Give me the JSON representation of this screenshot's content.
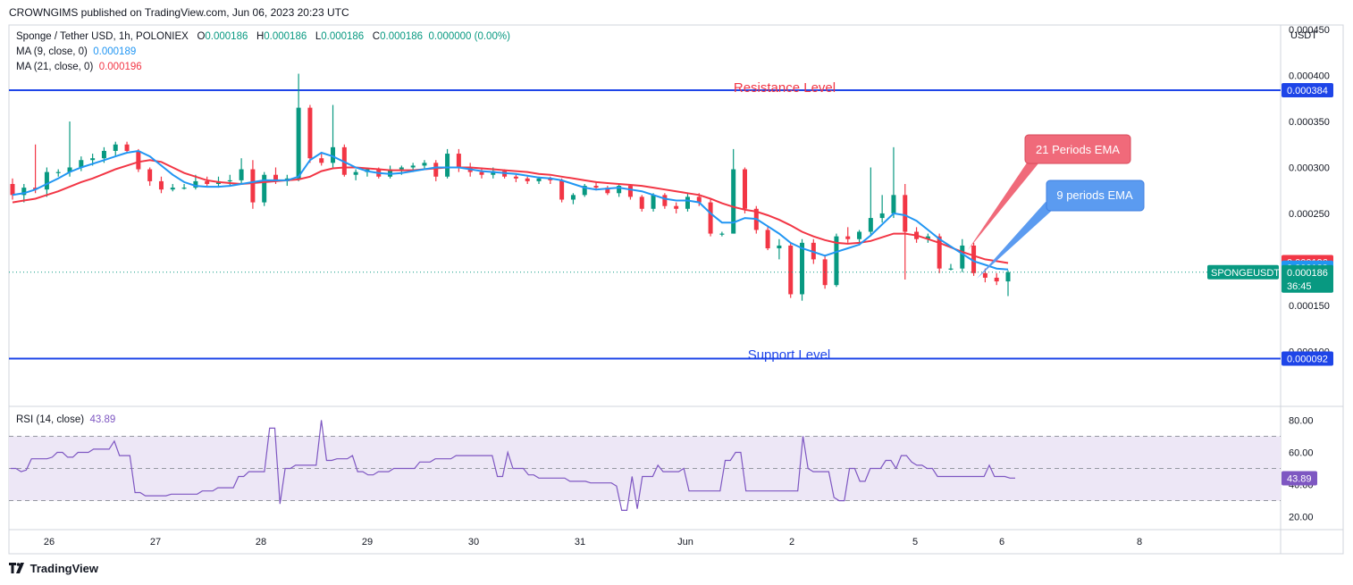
{
  "publisher": "CROWNGIMS published on TradingView.com, Jun 06, 2023 20:23 UTC",
  "legend": {
    "symbol": "Sponge / Tether USD, 1h, POLONIEX",
    "o_label": "O",
    "o": "0.000186",
    "h_label": "H",
    "h": "0.000186",
    "l_label": "L",
    "l": "0.000186",
    "c_label": "C",
    "c": "0.000186",
    "change": "0.000000 (0.00%)",
    "ma9_label": "MA (9, close, 0)",
    "ma9_value": "0.000189",
    "ma21_label": "MA (21, close, 0)",
    "ma21_value": "0.000196",
    "rsi_label": "RSI (14, close)",
    "rsi_value": "43.89"
  },
  "currency": "USDT",
  "annotations": {
    "resistance": "Resistance Level",
    "support": "Support Level",
    "ema21": "21 Periods EMA",
    "ema9": "9 periods EMA"
  },
  "price_tags": {
    "resistance": "0.000384",
    "ma21": "0.000196",
    "ma9": "0.000189",
    "symbol": "SPONGEUSDT",
    "last": "0.000186",
    "countdown": "36:45",
    "support": "0.000092",
    "rsi": "43.89"
  },
  "footer_logo": "TradingView",
  "colors": {
    "up": "#089981",
    "down": "#f23645",
    "ma9": "#2196f3",
    "ma21": "#f23645",
    "level": "#1e45e8",
    "rsi": "#7e57c2",
    "rsi_band": "#ede7f6",
    "ema21_box": "#f06a7a",
    "ema9_box": "#5b9bf0"
  },
  "chart_data": [
    {
      "type": "candlestick",
      "title": "Sponge / Tether USD, 1h, POLONIEX",
      "ylabel": "USDT",
      "x_ticks": [
        "26",
        "27",
        "28",
        "29",
        "30",
        "31",
        "Jun",
        "2",
        "5",
        "6",
        "8"
      ],
      "y_ticks": [
        "0.000450",
        "0.000400",
        "0.000350",
        "0.000300",
        "0.000250",
        "0.000150",
        "0.000100"
      ],
      "ylim": [
        4e-05,
        0.000455
      ],
      "levels": [
        {
          "name": "Resistance Level",
          "value": 0.000384
        },
        {
          "name": "Support Level",
          "value": 9.2e-05
        }
      ],
      "series": [
        {
          "name": "MA (9, close, 0)",
          "last": 0.000189
        },
        {
          "name": "MA (21, close, 0)",
          "last": 0.000196
        }
      ],
      "last_price": 0.000186,
      "candles": [
        [
          0.000282,
          0.000288,
          0.000265,
          0.00027
        ],
        [
          0.00027,
          0.000282,
          0.000262,
          0.000278
        ],
        [
          0.000278,
          0.000325,
          0.000272,
          0.000276
        ],
        [
          0.000276,
          0.0003,
          0.000268,
          0.000295
        ],
        [
          0.000295,
          0.000298,
          0.00029,
          0.000295
        ],
        [
          0.000295,
          0.00035,
          0.00029,
          0.0003
        ],
        [
          0.0003,
          0.000312,
          0.000296,
          0.000308
        ],
        [
          0.000308,
          0.000315,
          0.000302,
          0.00031
        ],
        [
          0.00031,
          0.000322,
          0.000305,
          0.000318
        ],
        [
          0.000318,
          0.000328,
          0.000312,
          0.000325
        ],
        [
          0.000325,
          0.000328,
          0.000315,
          0.000318
        ],
        [
          0.000318,
          0.00032,
          0.000295,
          0.000298
        ],
        [
          0.000298,
          0.0003,
          0.00028,
          0.000285
        ],
        [
          0.000285,
          0.00029,
          0.000272,
          0.000276
        ],
        [
          0.000276,
          0.000282,
          0.000274,
          0.000278
        ],
        [
          0.000278,
          0.000282,
          0.000276,
          0.000278
        ],
        [
          0.000278,
          0.000292,
          0.000276,
          0.000285
        ],
        [
          0.000285,
          0.00029,
          0.00028,
          0.000282
        ],
        [
          0.000282,
          0.00029,
          0.000278,
          0.000285
        ],
        [
          0.000285,
          0.000292,
          0.00028,
          0.000286
        ],
        [
          0.000286,
          0.00031,
          0.000282,
          0.000298
        ],
        [
          0.000298,
          0.000308,
          0.000255,
          0.000262
        ],
        [
          0.000262,
          0.000295,
          0.000258,
          0.000292
        ],
        [
          0.000292,
          0.0003,
          0.000282,
          0.000285
        ],
        [
          0.000285,
          0.000292,
          0.00028,
          0.000288
        ],
        [
          0.000288,
          0.000402,
          0.000285,
          0.000365
        ],
        [
          0.000365,
          0.000368,
          0.000305,
          0.00031
        ],
        [
          0.00031,
          0.000315,
          0.000302,
          0.000305
        ],
        [
          0.000305,
          0.000368,
          0.0003,
          0.000322
        ],
        [
          0.000322,
          0.000325,
          0.00029,
          0.000292
        ],
        [
          0.000292,
          0.000298,
          0.000286,
          0.000295
        ],
        [
          0.000295,
          0.0003,
          0.00029,
          0.000298
        ],
        [
          0.000298,
          0.0003,
          0.000288,
          0.00029
        ],
        [
          0.00029,
          0.000302,
          0.000288,
          0.000298
        ],
        [
          0.000298,
          0.000302,
          0.000292,
          0.0003
        ],
        [
          0.0003,
          0.000305,
          0.000295,
          0.000302
        ],
        [
          0.000302,
          0.000308,
          0.000298,
          0.000305
        ],
        [
          0.000305,
          0.000308,
          0.000285,
          0.00029
        ],
        [
          0.00029,
          0.00032,
          0.000288,
          0.000315
        ],
        [
          0.000315,
          0.00032,
          0.000295,
          0.0003
        ],
        [
          0.0003,
          0.000305,
          0.00029,
          0.000295
        ],
        [
          0.000295,
          0.0003,
          0.000288,
          0.000292
        ],
        [
          0.000292,
          0.0003,
          0.000288,
          0.000296
        ],
        [
          0.000296,
          0.000298,
          0.000288,
          0.00029
        ],
        [
          0.00029,
          0.000292,
          0.000284,
          0.000288
        ],
        [
          0.000288,
          0.00029,
          0.000282,
          0.000285
        ],
        [
          0.000285,
          0.00029,
          0.000282,
          0.000288
        ],
        [
          0.000288,
          0.00029,
          0.000282,
          0.000286
        ],
        [
          0.000286,
          0.000288,
          0.000262,
          0.000265
        ],
        [
          0.000265,
          0.000272,
          0.00026,
          0.00027
        ],
        [
          0.00027,
          0.000282,
          0.000268,
          0.00028
        ],
        [
          0.00028,
          0.000285,
          0.000275,
          0.000278
        ],
        [
          0.000278,
          0.00028,
          0.00027,
          0.000272
        ],
        [
          0.000272,
          0.000282,
          0.000268,
          0.00028
        ],
        [
          0.00028,
          0.000282,
          0.000265,
          0.000268
        ],
        [
          0.000268,
          0.00027,
          0.000252,
          0.000255
        ],
        [
          0.000255,
          0.000272,
          0.000252,
          0.00027
        ],
        [
          0.00027,
          0.000272,
          0.000255,
          0.000258
        ],
        [
          0.000258,
          0.000262,
          0.00025,
          0.000255
        ],
        [
          0.000255,
          0.000272,
          0.000252,
          0.000268
        ],
        [
          0.000268,
          0.000272,
          0.000258,
          0.000262
        ],
        [
          0.000262,
          0.000265,
          0.000225,
          0.000228
        ],
        [
          0.000228,
          0.00023,
          0.000225,
          0.000228
        ],
        [
          0.000228,
          0.00032,
          0.000228,
          0.000298
        ],
        [
          0.000298,
          0.0003,
          0.00025,
          0.000255
        ],
        [
          0.000255,
          0.000258,
          0.000228,
          0.000232
        ],
        [
          0.000232,
          0.000235,
          0.00021,
          0.000212
        ],
        [
          0.000212,
          0.000222,
          0.0002,
          0.000215
        ],
        [
          0.000215,
          0.000218,
          0.000158,
          0.000162
        ],
        [
          0.000162,
          0.000222,
          0.000155,
          0.000218
        ],
        [
          0.000218,
          0.000222,
          0.000195,
          0.0002
        ],
        [
          0.0002,
          0.000205,
          0.000168,
          0.000172
        ],
        [
          0.000172,
          0.000228,
          0.00017,
          0.000225
        ],
        [
          0.000225,
          0.000235,
          0.000218,
          0.000222
        ],
        [
          0.000222,
          0.000232,
          0.000215,
          0.00023
        ],
        [
          0.00023,
          0.0003,
          0.000225,
          0.000245
        ],
        [
          0.000245,
          0.00027,
          0.00024,
          0.00025
        ],
        [
          0.00025,
          0.000322,
          0.000245,
          0.00027
        ],
        [
          0.00027,
          0.000282,
          0.000178,
          0.00023
        ],
        [
          0.00023,
          0.000235,
          0.000218,
          0.000222
        ],
        [
          0.000222,
          0.000228,
          0.000218,
          0.000225
        ],
        [
          0.000225,
          0.000228,
          0.000185,
          0.00019
        ],
        [
          0.00019,
          0.000195,
          0.000188,
          0.00019
        ],
        [
          0.00019,
          0.000222,
          0.000186,
          0.000215
        ],
        [
          0.000215,
          0.000218,
          0.000182,
          0.000185
        ],
        [
          0.000185,
          0.00019,
          0.000175,
          0.00018
        ],
        [
          0.00018,
          0.000185,
          0.000172,
          0.000176
        ],
        [
          0.000176,
          0.000188,
          0.00016,
          0.000186
        ]
      ],
      "ma9": [
        0.00027,
        0.000272,
        0.000276,
        0.000282,
        0.000288,
        0.000295,
        0.0003,
        0.000304,
        0.000308,
        0.000312,
        0.000316,
        0.000318,
        0.000312,
        0.000302,
        0.000292,
        0.000284,
        0.00028,
        0.000279,
        0.000279,
        0.00028,
        0.000282,
        0.000284,
        0.000286,
        0.000286,
        0.000286,
        0.00029,
        0.000308,
        0.000316,
        0.000312,
        0.000306,
        0.0003,
        0.000296,
        0.000294,
        0.000293,
        0.000294,
        0.000296,
        0.000298,
        0.0003,
        0.0003,
        0.0003,
        0.000298,
        0.000296,
        0.000295,
        0.000294,
        0.000293,
        0.000291,
        0.000289,
        0.000288,
        0.000286,
        0.000282,
        0.000278,
        0.000276,
        0.000277,
        0.000278,
        0.000276,
        0.000274,
        0.00027,
        0.000266,
        0.000264,
        0.000264,
        0.000262,
        0.00025,
        0.00024,
        0.00024,
        0.000245,
        0.000244,
        0.000236,
        0.000228,
        0.000218,
        0.000212,
        0.000208,
        0.000204,
        0.000208,
        0.000212,
        0.000216,
        0.000226,
        0.000238,
        0.00025,
        0.000248,
        0.000242,
        0.000232,
        0.000222,
        0.000214,
        0.000206,
        0.000198,
        0.000194,
        0.00019,
        0.000189
      ],
      "ma21": [
        0.000262,
        0.000264,
        0.000266,
        0.00027,
        0.000274,
        0.000279,
        0.000284,
        0.000288,
        0.000293,
        0.000298,
        0.000302,
        0.000306,
        0.000308,
        0.000306,
        0.0003,
        0.000294,
        0.00029,
        0.000286,
        0.000284,
        0.000283,
        0.000282,
        0.000283,
        0.000284,
        0.000285,
        0.000286,
        0.000287,
        0.00029,
        0.000296,
        0.000299,
        0.0003,
        0.0003,
        0.000299,
        0.000298,
        0.000297,
        0.000297,
        0.000297,
        0.000298,
        0.000299,
        0.0003,
        0.0003,
        0.0003,
        0.000299,
        0.000298,
        0.000297,
        0.000296,
        0.000295,
        0.000293,
        0.000292,
        0.00029,
        0.000288,
        0.000286,
        0.000284,
        0.000283,
        0.000282,
        0.000281,
        0.00028,
        0.000278,
        0.000276,
        0.000274,
        0.000272,
        0.00027,
        0.000266,
        0.000261,
        0.000257,
        0.000254,
        0.000252,
        0.000248,
        0.000243,
        0.000237,
        0.00023,
        0.000225,
        0.000221,
        0.000218,
        0.000217,
        0.000218,
        0.00022,
        0.000224,
        0.000228,
        0.000228,
        0.000226,
        0.000222,
        0.000218,
        0.000213,
        0.000208,
        0.000204,
        0.0002,
        0.000198,
        0.000196
      ]
    },
    {
      "type": "line",
      "title": "RSI (14, close)",
      "y_ticks": [
        "80.00",
        "60.00",
        "40.00",
        "20.00"
      ],
      "ylim": [
        12,
        88
      ],
      "bands": {
        "upper": 70,
        "middle": 50,
        "lower": 30
      },
      "last": 43.89,
      "values": [
        50,
        50,
        48,
        49,
        56,
        56,
        56,
        56,
        57,
        60,
        60,
        57,
        57,
        60,
        60,
        60,
        62,
        62,
        62,
        62,
        67,
        58,
        58,
        58,
        35,
        35,
        33,
        33,
        33,
        33,
        33,
        34,
        34,
        34,
        34,
        34,
        34,
        36,
        36,
        36,
        38,
        38,
        38,
        38,
        45,
        45,
        48,
        48,
        48,
        48,
        75,
        75,
        28,
        50,
        50,
        52,
        52,
        52,
        52,
        52,
        80,
        55,
        55,
        56,
        56,
        56,
        58,
        48,
        48,
        46,
        46,
        48,
        48,
        48,
        50,
        50,
        50,
        50,
        50,
        54,
        54,
        54,
        56,
        56,
        56,
        56,
        58,
        58,
        58,
        58,
        58,
        58,
        58,
        58,
        45,
        45,
        60,
        50,
        50,
        50,
        46,
        46,
        44,
        44,
        44,
        44,
        44,
        44,
        42,
        42,
        42,
        42,
        41,
        41,
        41,
        41,
        41,
        39,
        24,
        24,
        45,
        25,
        45,
        45,
        45,
        52,
        48,
        48,
        48,
        48,
        50,
        36,
        36,
        36,
        36,
        36,
        36,
        36,
        55,
        55,
        60,
        60,
        36,
        36,
        36,
        36,
        36,
        36,
        36,
        36,
        36,
        36,
        36,
        70,
        50,
        48,
        48,
        48,
        48,
        32,
        30,
        30,
        50,
        50,
        42,
        42,
        50,
        50,
        50,
        55,
        55,
        50,
        58,
        58,
        54,
        52,
        52,
        50,
        50,
        45,
        45,
        45,
        45,
        45,
        45,
        45,
        45,
        45,
        45,
        52,
        45,
        45,
        45,
        44,
        44
      ]
    }
  ]
}
